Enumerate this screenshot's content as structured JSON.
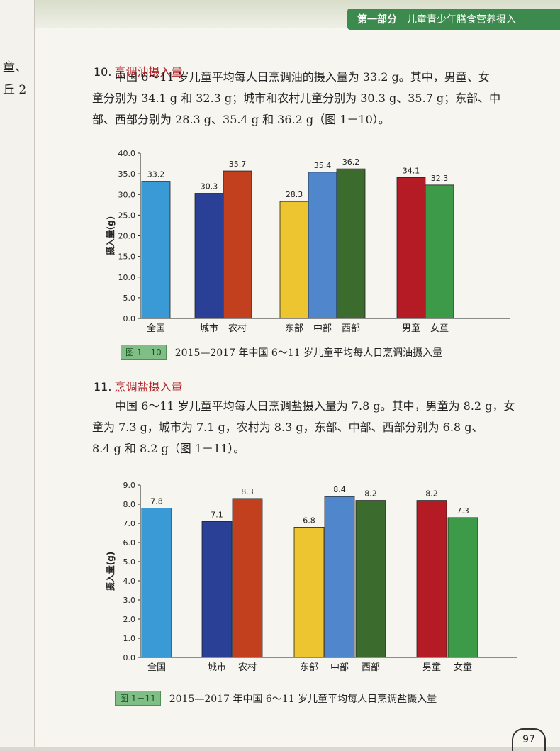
{
  "left_page": {
    "fragments": [
      "童、",
      "丘 2"
    ]
  },
  "header": {
    "part": "第一部分",
    "title": "儿童青少年膳食营养摄入"
  },
  "section10": {
    "num": "10.",
    "title": "烹调油摄入量",
    "lines": [
      "中国 6～11 岁儿童平均每人日烹调油的摄入量为 33.2 g。其中，男童、女",
      "童分别为 34.1 g 和 32.3 g；城市和农村儿童分别为 30.3 g、35.7 g；东部、中",
      "部、西部分别为 28.3 g、35.4 g 和 36.2 g（图 1－10）。"
    ]
  },
  "section11": {
    "num": "11.",
    "title": "烹调盐摄入量",
    "lines": [
      "中国 6～11 岁儿童平均每人日烹调盐摄入量为 7.8 g。其中，男童为 8.2 g，女",
      "童为 7.3 g，城市为 7.1 g，农村为 8.3 g，东部、中部、西部分别为 6.8 g、",
      "8.4 g 和 8.2 g（图 1－11）。"
    ]
  },
  "chart_data": [
    {
      "type": "bar",
      "title": "2015—2017 年中国 6～11 岁儿童平均每人日烹调油摄入量",
      "figure_tag": "图 1－10",
      "ylabel": "摄入量(g)",
      "ylim": [
        0,
        40
      ],
      "yticks": [
        "0.0",
        "5.0",
        "10.0",
        "15.0",
        "20.0",
        "25.0",
        "30.0",
        "35.0",
        "40.0"
      ],
      "categories": [
        "全国",
        "城市",
        "农村",
        "东部",
        "中部",
        "西部",
        "男童",
        "女童"
      ],
      "values": [
        33.2,
        30.3,
        35.7,
        28.3,
        35.4,
        36.2,
        34.1,
        32.3
      ],
      "labels": [
        "33.2",
        "30.3",
        "35.7",
        "28.3",
        "35.4",
        "36.2",
        "34.1",
        "32.3"
      ],
      "colors": [
        "#3a9ad6",
        "#2a3f96",
        "#c2401e",
        "#ecc531",
        "#4f86cc",
        "#3b6b2d",
        "#b51b24",
        "#3d9a48"
      ],
      "grid": false
    },
    {
      "type": "bar",
      "title": "2015—2017 年中国 6～11 岁儿童平均每人日烹调盐摄入量",
      "figure_tag": "图 1－11",
      "ylabel": "摄入量(g)",
      "ylim": [
        0,
        9
      ],
      "yticks": [
        "0.0",
        "1.0",
        "2.0",
        "3.0",
        "4.0",
        "5.0",
        "6.0",
        "7.0",
        "8.0",
        "9.0"
      ],
      "categories": [
        "全国",
        "城市",
        "农村",
        "东部",
        "中部",
        "西部",
        "男童",
        "女童"
      ],
      "values": [
        7.8,
        7.1,
        8.3,
        6.8,
        8.4,
        8.2,
        8.2,
        7.3
      ],
      "labels": [
        "7.8",
        "7.1",
        "8.3",
        "6.8",
        "8.4",
        "8.2",
        "8.2",
        "7.3"
      ],
      "colors": [
        "#3a9ad6",
        "#2a3f96",
        "#c2401e",
        "#ecc531",
        "#4f86cc",
        "#3b6b2d",
        "#b51b24",
        "#3d9a48"
      ],
      "grid": false
    }
  ],
  "page_number": "97"
}
